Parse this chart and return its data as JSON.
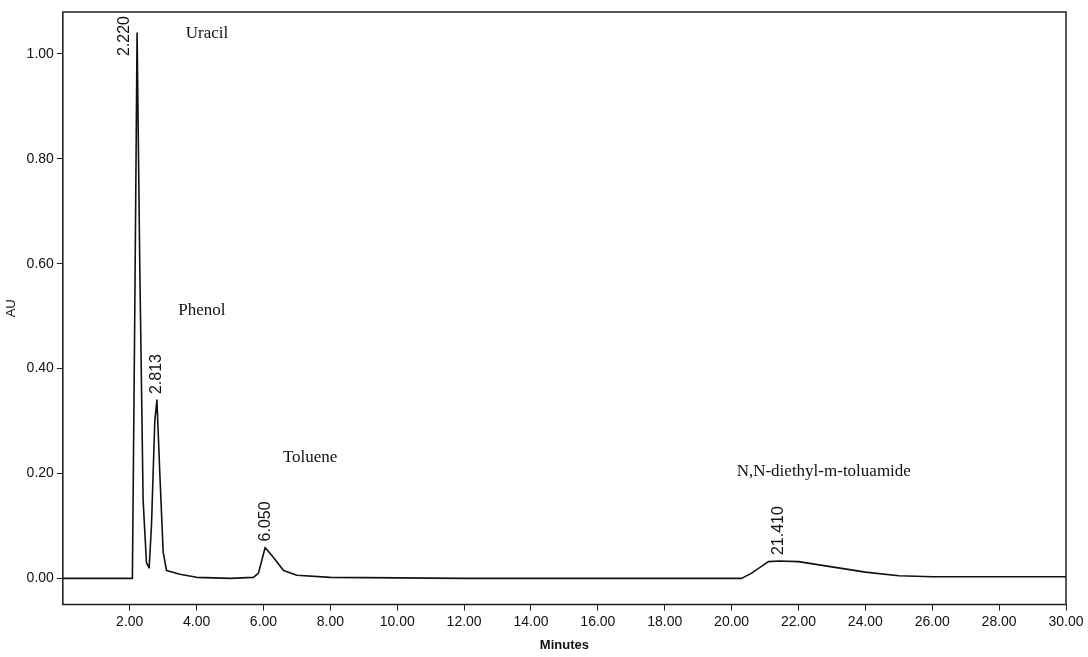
{
  "chart_data": {
    "type": "line",
    "xlabel": "Minutes",
    "ylabel": "AU",
    "x": [
      0,
      2.0,
      2.08,
      2.15,
      2.22,
      2.3,
      2.4,
      2.5,
      2.58,
      2.65,
      2.75,
      2.813,
      2.9,
      3.0,
      3.1,
      3.5,
      4.0,
      5.0,
      5.7,
      5.85,
      6.05,
      6.3,
      6.6,
      7.0,
      8.0,
      12.0,
      20.3,
      20.6,
      21.1,
      21.41,
      22.0,
      23.0,
      24.0,
      25.0,
      26.0,
      30.0
    ],
    "series": [
      {
        "color": "#111111",
        "values": [
          0,
          0,
          0,
          0.5,
          1.04,
          0.6,
          0.15,
          0.03,
          0.02,
          0.1,
          0.3,
          0.34,
          0.2,
          0.05,
          0.015,
          0.008,
          0.002,
          0,
          0.002,
          0.01,
          0.059,
          0.04,
          0.015,
          0.006,
          0.002,
          0,
          0,
          0.01,
          0.032,
          0.033,
          0.032,
          0.022,
          0.012,
          0.005,
          0.003,
          0.003
        ]
      }
    ],
    "xlim": [
      0,
      30
    ],
    "xticks": [
      {
        "value": 2,
        "label": "2.00"
      },
      {
        "value": 4,
        "label": "4.00"
      },
      {
        "value": 6,
        "label": "6.00"
      },
      {
        "value": 8,
        "label": "8.00"
      },
      {
        "value": 10,
        "label": "10.00"
      },
      {
        "value": 12,
        "label": "12.00"
      },
      {
        "value": 14,
        "label": "14.00"
      },
      {
        "value": 16,
        "label": "16.00"
      },
      {
        "value": 18,
        "label": "18.00"
      },
      {
        "value": 20,
        "label": "20.00"
      },
      {
        "value": 22,
        "label": "22.00"
      },
      {
        "value": 24,
        "label": "24.00"
      },
      {
        "value": 26,
        "label": "26.00"
      },
      {
        "value": 28,
        "label": "28.00"
      },
      {
        "value": 30,
        "label": "30.00"
      }
    ],
    "ylim": [
      -0.05,
      1.08
    ],
    "yticks": [
      {
        "value": 0,
        "label": "0.00"
      },
      {
        "value": 0.2,
        "label": "0.20"
      },
      {
        "value": 0.4,
        "label": "0.40"
      },
      {
        "value": 0.6,
        "label": "0.60"
      },
      {
        "value": 0.8,
        "label": "0.80"
      },
      {
        "value": 1.0,
        "label": "1.00"
      }
    ],
    "grid": false,
    "legend": false,
    "marker": "none",
    "line_style": "solid",
    "annotations": [
      {
        "text": "2.220",
        "x": 2.22,
        "y": 1.04
      },
      {
        "text": "2.813",
        "x": 2.813,
        "y": 0.34
      },
      {
        "text": "6.050",
        "x": 6.05,
        "y": 0.059
      },
      {
        "text": "21.410",
        "x": 21.41,
        "y": 0.033
      },
      "Uracil",
      "Phenol",
      "Toluene",
      "N,N-diethyl-m-toluamide"
    ]
  }
}
